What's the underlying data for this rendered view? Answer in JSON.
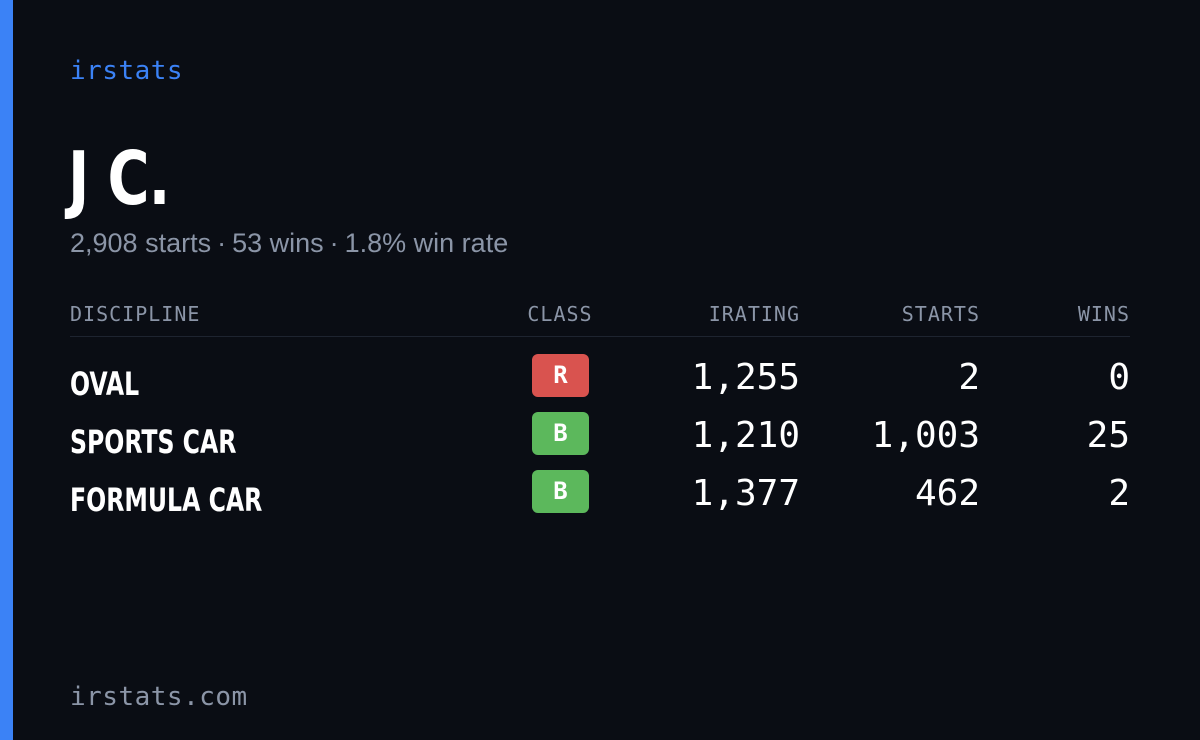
{
  "brand": "irstats",
  "driver": {
    "name": "J C.",
    "starts": "2,908 starts",
    "wins": "53 wins",
    "win_rate": "1.8% win rate",
    "separator": "·"
  },
  "table": {
    "headers": {
      "discipline": "DISCIPLINE",
      "class": "CLASS",
      "irating": "IRATING",
      "starts": "STARTS",
      "wins": "WINS"
    },
    "rows": [
      {
        "discipline": "OVAL",
        "class": "R",
        "class_color": "#d9534f",
        "irating": "1,255",
        "starts": "2",
        "wins": "0"
      },
      {
        "discipline": "SPORTS CAR",
        "class": "B",
        "class_color": "#5cb85c",
        "irating": "1,210",
        "starts": "1,003",
        "wins": "25"
      },
      {
        "discipline": "FORMULA CAR",
        "class": "B",
        "class_color": "#5cb85c",
        "irating": "1,377",
        "starts": "462",
        "wins": "2"
      }
    ]
  },
  "footer": "irstats.com",
  "colors": {
    "accent": "#3b82f6",
    "background": "#0a0d14",
    "muted_text": "#8b95a7"
  }
}
